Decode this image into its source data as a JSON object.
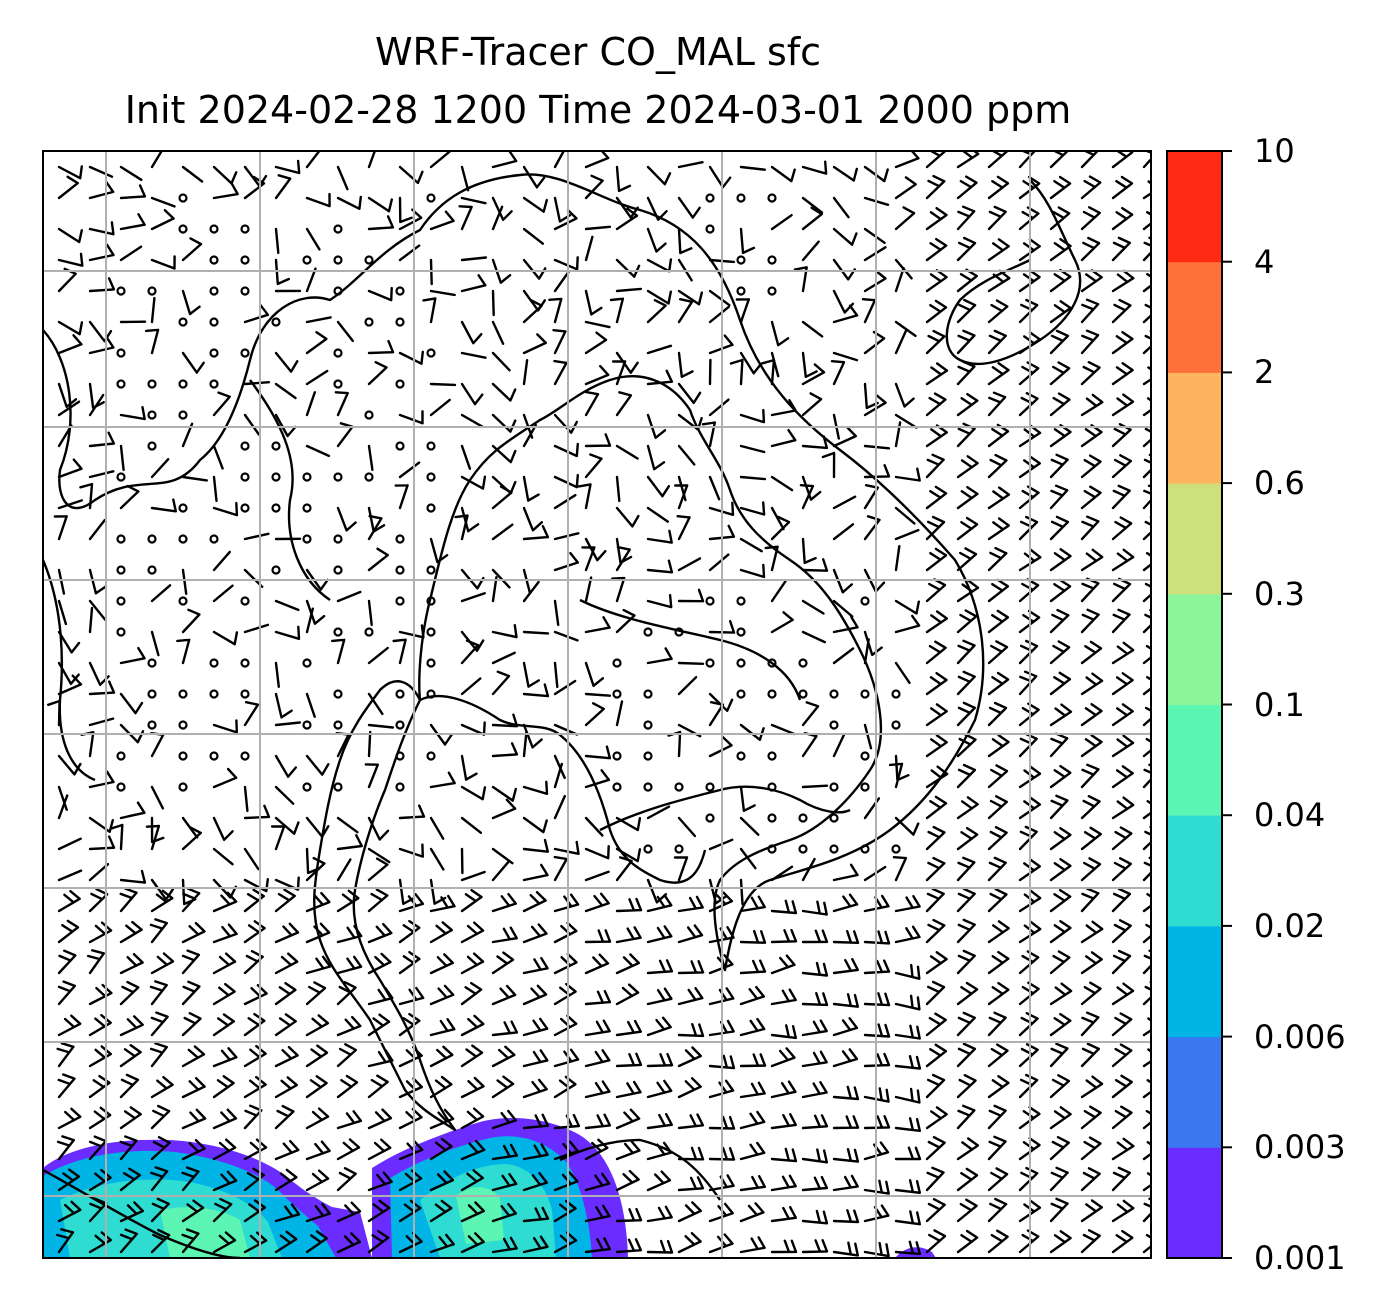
{
  "title": {
    "line1": "WRF-Tracer CO_MAL sfc",
    "line2": "Init 2024-02-28 1200 Time 2024-03-01 2000 ppm"
  },
  "colorbar": {
    "levels": [
      "0.001",
      "0.003",
      "0.006",
      "0.02",
      "0.04",
      "0.1",
      "0.3",
      "0.6",
      "2",
      "4",
      "10"
    ],
    "colors": [
      "#6a2cff",
      "#3a78f0",
      "#00b4e6",
      "#2fdcd2",
      "#5cf5b4",
      "#8cf59a",
      "#cde07a",
      "#fdb45e",
      "#ff7138",
      "#ff2a14"
    ]
  },
  "map": {
    "gridlines": "on",
    "grid_color": "#b0b0b0",
    "coastline_color": "#000000",
    "overlay": "wind barbs"
  }
}
